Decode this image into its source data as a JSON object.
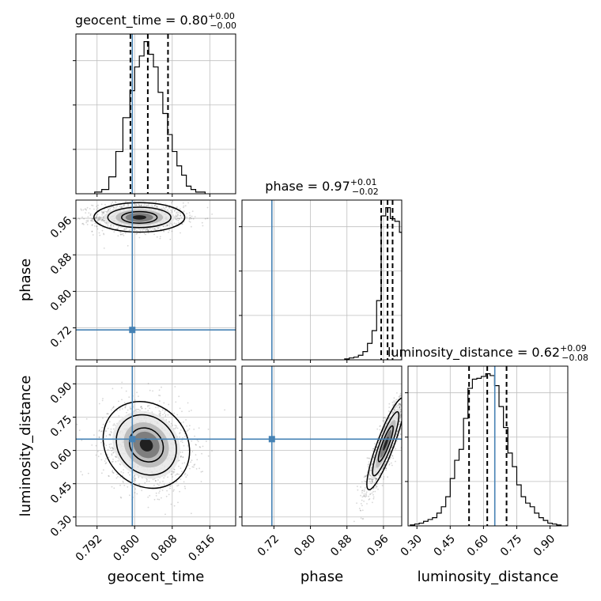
{
  "chart_data": {
    "type": "corner",
    "parameters": [
      "geocent_time",
      "phase",
      "luminosity_distance"
    ],
    "axis_labels": {
      "geocent_time": "geocent_time",
      "phase": "phase",
      "luminosity_distance": "luminosity_distance"
    },
    "titles": {
      "geocent_time": {
        "name": "geocent_time",
        "median": "0.80",
        "upper": "+0.00",
        "lower": "−0.00"
      },
      "phase": {
        "name": "phase",
        "median": "0.97",
        "upper": "+0.01",
        "lower": "−0.02"
      },
      "luminosity_distance": {
        "name": "luminosity_distance",
        "median": "0.62",
        "upper": "+0.09",
        "lower": "−0.08"
      }
    },
    "ranges": {
      "geocent_time": [
        0.7875,
        0.8215
      ],
      "phase": [
        0.65,
        1.0
      ],
      "luminosity_distance": [
        0.26,
        0.98
      ]
    },
    "ticks": {
      "geocent_time": [
        0.792,
        0.8,
        0.808,
        0.816
      ],
      "phase": [
        0.72,
        0.8,
        0.88,
        0.96
      ],
      "luminosity_distance": [
        0.3,
        0.45,
        0.6,
        0.75,
        0.9
      ]
    },
    "tick_labels": {
      "geocent_time": [
        "0.792",
        "0.800",
        "0.808",
        "0.816"
      ],
      "phase": [
        "0.72",
        "0.80",
        "0.88",
        "0.96"
      ],
      "luminosity_distance": [
        "0.30",
        "0.45",
        "0.60",
        "0.75",
        "0.90"
      ]
    },
    "injection": {
      "geocent_time": 0.7995,
      "phase": 0.7155,
      "luminosity_distance": 0.651
    },
    "quantiles": {
      "geocent_time": [
        0.7991,
        0.8028,
        0.8071
      ],
      "phase": [
        0.955,
        0.969,
        0.98
      ],
      "luminosity_distance": [
        0.535,
        0.617,
        0.704
      ]
    },
    "histograms": {
      "geocent_time": {
        "edges": [
          0.7915,
          0.793,
          0.7945,
          0.796,
          0.7975,
          0.799,
          0.8,
          0.801,
          0.802,
          0.803,
          0.804,
          0.805,
          0.806,
          0.807,
          0.808,
          0.809,
          0.81,
          0.811,
          0.812,
          0.813,
          0.815
        ],
        "counts": [
          2,
          5,
          20,
          50,
          90,
          122,
          150,
          163,
          180,
          165,
          150,
          120,
          95,
          70,
          50,
          33,
          22,
          9,
          5,
          2
        ]
      },
      "phase": {
        "edges": [
          0.875,
          0.885,
          0.895,
          0.905,
          0.915,
          0.925,
          0.935,
          0.945,
          0.955,
          0.965,
          0.975,
          0.985,
          0.995,
          1.0
        ],
        "counts": [
          1,
          2,
          3,
          5,
          9,
          18,
          32,
          65,
          158,
          167,
          155,
          152,
          140
        ]
      },
      "luminosity_distance": {
        "edges": [
          0.27,
          0.29,
          0.31,
          0.33,
          0.35,
          0.37,
          0.39,
          0.41,
          0.43,
          0.45,
          0.47,
          0.49,
          0.51,
          0.53,
          0.55,
          0.57,
          0.59,
          0.61,
          0.63,
          0.65,
          0.67,
          0.69,
          0.71,
          0.73,
          0.75,
          0.77,
          0.79,
          0.81,
          0.83,
          0.85,
          0.87,
          0.89,
          0.91,
          0.93,
          0.95
        ],
        "counts": [
          1,
          2,
          3,
          5,
          7,
          9,
          14,
          21,
          32,
          52,
          72,
          84,
          118,
          151,
          161,
          162,
          164,
          167,
          165,
          154,
          131,
          108,
          80,
          65,
          45,
          32,
          25,
          21,
          14,
          9,
          6,
          3,
          2,
          1
        ]
      }
    },
    "pairs": [
      {
        "x": "geocent_time",
        "y": "phase",
        "center": [
          0.801,
          0.962
        ],
        "sigma": [
          0.0042,
          0.014
        ],
        "corr": 0.0
      },
      {
        "x": "geocent_time",
        "y": "luminosity_distance",
        "center": [
          0.8025,
          0.625
        ],
        "sigma": [
          0.004,
          0.085
        ],
        "corr": -0.15
      },
      {
        "x": "phase",
        "y": "luminosity_distance",
        "center": [
          0.965,
          0.63
        ],
        "sigma": [
          0.018,
          0.09
        ],
        "corr": 0.88
      }
    ],
    "colors": {
      "injection": "#4682b4",
      "histogram": "#000000",
      "grid": "#bfbfbf",
      "points": "#000000"
    }
  }
}
